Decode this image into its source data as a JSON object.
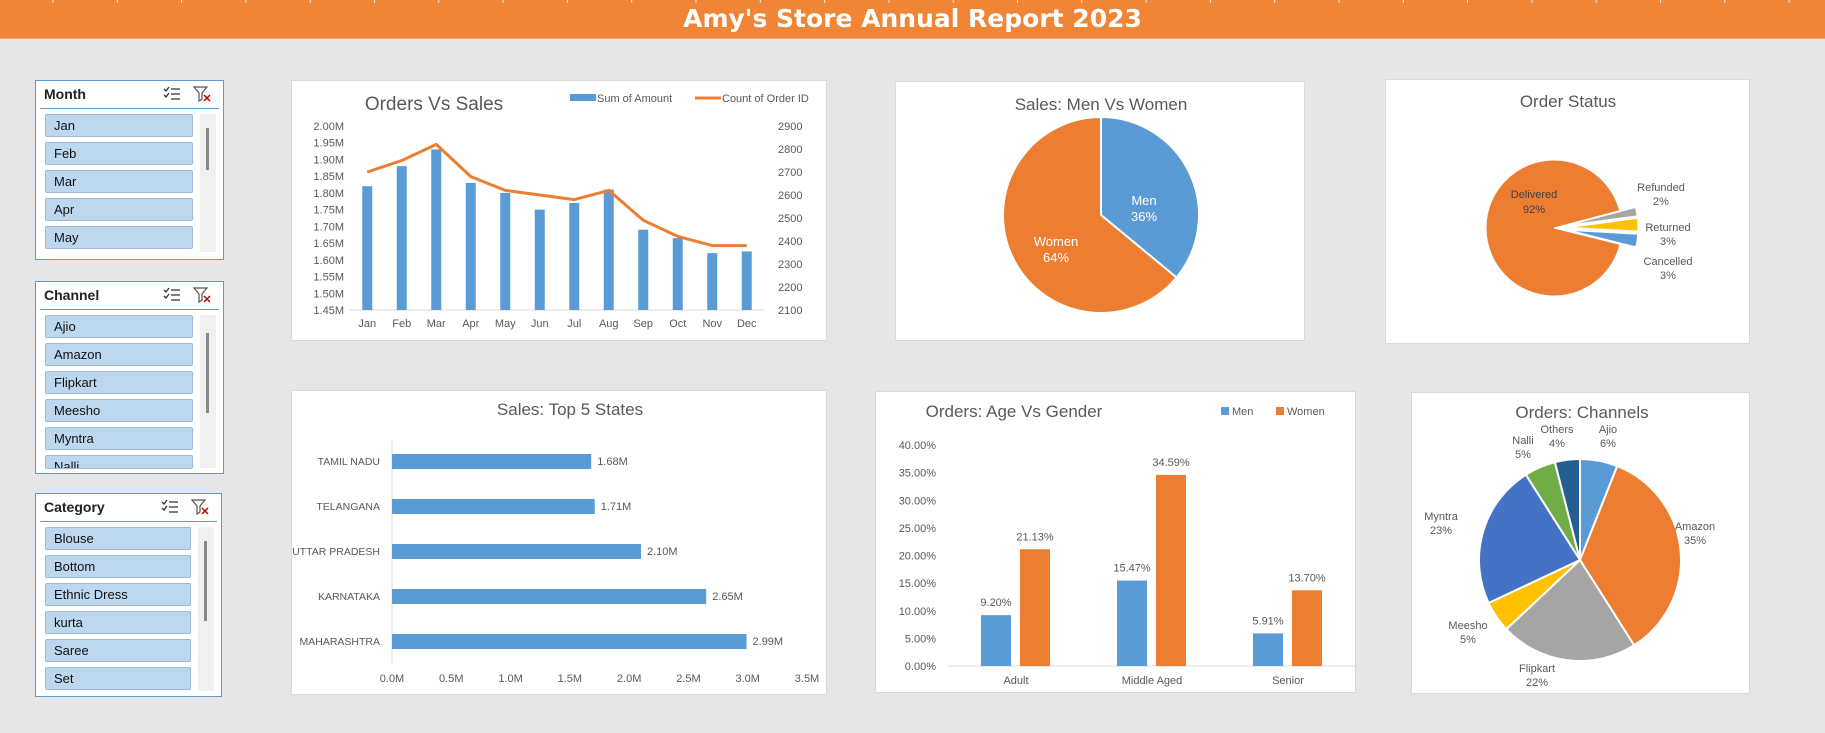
{
  "title": "Amy's Store Annual Report 2023",
  "colors": {
    "orange": "#ed7d31",
    "blue": "#5b9bd5",
    "banner": "#f08536",
    "yellow": "#ffc000",
    "gray": "#a5a5a5",
    "darkblue": "#4472c4",
    "green": "#70ad47",
    "navy": "#255e91"
  },
  "slicers": [
    {
      "title": "Month",
      "items": [
        "Jan",
        "Feb",
        "Mar",
        "Apr",
        "May"
      ]
    },
    {
      "title": "Channel",
      "items": [
        "Ajio",
        "Amazon",
        "Flipkart",
        "Meesho",
        "Myntra",
        "Nalli"
      ]
    },
    {
      "title": "Category",
      "items": [
        "Blouse",
        "Bottom",
        "Ethnic Dress",
        "kurta",
        "Saree",
        "Set"
      ]
    }
  ],
  "chart_data": [
    {
      "type": "bar+line",
      "title": "Orders Vs Sales",
      "categories": [
        "Jan",
        "Feb",
        "Mar",
        "Apr",
        "May",
        "Jun",
        "Jul",
        "Aug",
        "Sep",
        "Oct",
        "Nov",
        "Dec"
      ],
      "series": [
        {
          "name": "Sum of Amount",
          "type": "bar",
          "axis": "left",
          "values": [
            1.82,
            1.88,
            1.93,
            1.83,
            1.8,
            1.75,
            1.77,
            1.81,
            1.69,
            1.665,
            1.62,
            1.625
          ]
        },
        {
          "name": "Count of Order ID",
          "type": "line",
          "axis": "right",
          "values": [
            2700,
            2750,
            2820,
            2680,
            2620,
            2600,
            2580,
            2620,
            2490,
            2420,
            2380,
            2380
          ]
        }
      ],
      "y_left": {
        "min": 1.45,
        "max": 2.0,
        "ticks": [
          "1.45M",
          "1.50M",
          "1.55M",
          "1.60M",
          "1.65M",
          "1.70M",
          "1.75M",
          "1.80M",
          "1.85M",
          "1.90M",
          "1.95M",
          "2.00M"
        ]
      },
      "y_right": {
        "min": 2100,
        "max": 2900,
        "ticks": [
          "2100",
          "2200",
          "2300",
          "2400",
          "2500",
          "2600",
          "2700",
          "2800",
          "2900"
        ]
      },
      "legend": "top-right"
    },
    {
      "type": "pie",
      "title": "Sales:  Men Vs Women",
      "slices": [
        {
          "label": "Men",
          "percent": "36%",
          "value": 36
        },
        {
          "label": "Women",
          "percent": "64%",
          "value": 64
        }
      ]
    },
    {
      "type": "pie",
      "title": "Order Status",
      "slices": [
        {
          "label": "Delivered",
          "percent": "92%",
          "value": 92
        },
        {
          "label": "Refunded",
          "percent": "2%",
          "value": 2
        },
        {
          "label": "Returned",
          "percent": "3%",
          "value": 3
        },
        {
          "label": "Cancelled",
          "percent": "3%",
          "value": 3
        }
      ]
    },
    {
      "type": "hbar",
      "title": "Sales: Top 5 States",
      "categories": [
        "TAMIL NADU",
        "TELANGANA",
        "UTTAR PRADESH",
        "KARNATAKA",
        "MAHARASHTRA"
      ],
      "values": [
        1.68,
        1.71,
        2.1,
        2.65,
        2.99
      ],
      "labels": [
        "1.68M",
        "1.71M",
        "2.10M",
        "2.65M",
        "2.99M"
      ],
      "xlim": [
        0,
        3.5
      ],
      "ticks": [
        "0.0M",
        "0.5M",
        "1.0M",
        "1.5M",
        "2.0M",
        "2.5M",
        "3.0M",
        "3.5M"
      ]
    },
    {
      "type": "bar",
      "title": "Orders: Age Vs Gender",
      "categories": [
        "Adult",
        "Middle Aged",
        "Senior"
      ],
      "series": [
        {
          "name": "Men",
          "values": [
            9.2,
            15.47,
            5.91
          ],
          "labels": [
            "9.20%",
            "15.47%",
            "5.91%"
          ]
        },
        {
          "name": "Women",
          "values": [
            21.13,
            34.59,
            13.7
          ],
          "labels": [
            "21.13%",
            "34.59%",
            "13.70%"
          ]
        }
      ],
      "ylim": [
        0,
        40
      ],
      "ticks": [
        "0.00%",
        "5.00%",
        "10.00%",
        "15.00%",
        "20.00%",
        "25.00%",
        "30.00%",
        "35.00%",
        "40.00%"
      ],
      "legend": "top-right"
    },
    {
      "type": "pie",
      "title": "Orders: Channels",
      "slices": [
        {
          "label": "Ajio",
          "percent": "6%",
          "value": 6
        },
        {
          "label": "Amazon",
          "percent": "35%",
          "value": 35
        },
        {
          "label": "Flipkart",
          "percent": "22%",
          "value": 22
        },
        {
          "label": "Meesho",
          "percent": "5%",
          "value": 5
        },
        {
          "label": "Myntra",
          "percent": "23%",
          "value": 23
        },
        {
          "label": "Nalli",
          "percent": "5%",
          "value": 5
        },
        {
          "label": "Others",
          "percent": "4%",
          "value": 4
        }
      ]
    }
  ]
}
